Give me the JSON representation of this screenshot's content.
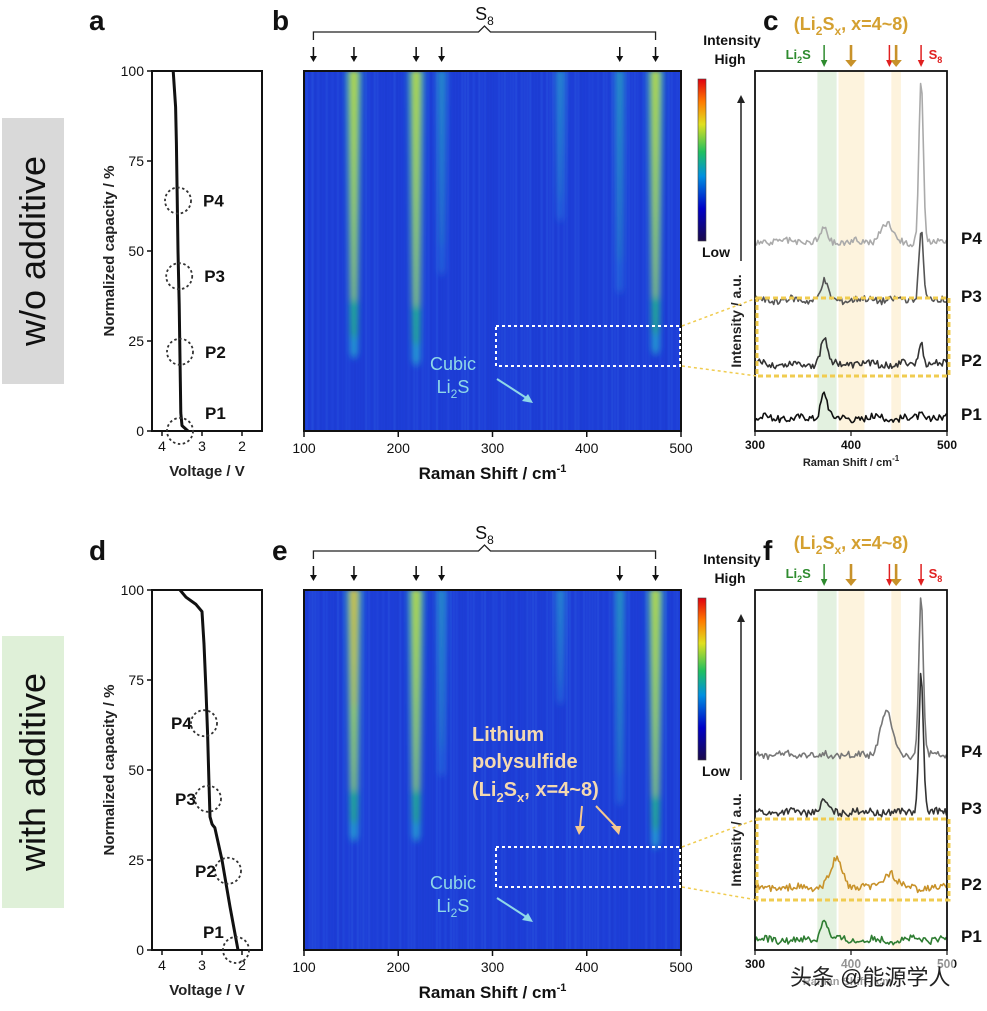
{
  "row_labels": {
    "top": "w/o additive",
    "bottom": "with additive"
  },
  "watermark": "头条 @能源学人",
  "panels": {
    "a": "a",
    "b": "b",
    "c": "c",
    "d": "d",
    "e": "e",
    "f": "f"
  },
  "common": {
    "s8": "S",
    "s8_sub": "8",
    "intensity": "Intensity",
    "high": "High",
    "low": "Low",
    "cubic": "Cubic",
    "li": "Li",
    "li2s_sub": "2",
    "li2s_s": "S",
    "raman_axis": "Raman Shift / cm",
    "raman_axis_sup": "-1",
    "raman_axis_small": "Raman Shift / cm",
    "voltage_axis": "Voltage / V",
    "capacity_axis": "Normalized capacity / %",
    "intensity_axis": "Intensity / a.u.",
    "polysulfide_top": "(Li",
    "polysulfide_mid": "S",
    "polysulfide_x": "x",
    "polysulfide_end": ", x=4~8)",
    "lithium": "Lithium",
    "polysulfide_word": "polysulfide",
    "li2s_marker": "Li",
    "s8_marker": "S"
  },
  "chart_data": [
    {
      "id": "a",
      "type": "line",
      "xlabel": "Voltage / V",
      "ylabel": "Normalized capacity / %",
      "xlim": [
        4.25,
        1.5
      ],
      "ylim": [
        0,
        100
      ],
      "xticks": [
        4,
        3,
        2
      ],
      "yticks": [
        0,
        25,
        50,
        75,
        100
      ],
      "series": [
        {
          "name": "discharge",
          "x": [
            3.72,
            3.66,
            3.64,
            3.62,
            3.6,
            3.57,
            3.55,
            3.53,
            3.5,
            3.35
          ],
          "y": [
            100,
            90,
            80,
            65,
            50,
            35,
            20,
            5,
            1.5,
            0
          ]
        }
      ],
      "points": [
        {
          "label": "P1",
          "x": 3.55,
          "y": 0
        },
        {
          "label": "P2",
          "x": 3.55,
          "y": 22
        },
        {
          "label": "P3",
          "x": 3.57,
          "y": 43
        },
        {
          "label": "P4",
          "x": 3.6,
          "y": 64
        }
      ]
    },
    {
      "id": "b",
      "type": "heatmap",
      "xlabel": "Raman Shift / cm-1",
      "xlim": [
        100,
        500
      ],
      "xticks": [
        100,
        200,
        300,
        400,
        500
      ],
      "colorbar": [
        "Intensity",
        "High",
        "Low"
      ],
      "s8_peaks": [
        110,
        153,
        219,
        246,
        435,
        473
      ],
      "bands": [
        {
          "x": 153,
          "strength": 1.0,
          "extent": 0.78
        },
        {
          "x": 219,
          "strength": 1.0,
          "extent": 0.8
        },
        {
          "x": 246,
          "strength": 0.35,
          "extent": 0.55
        },
        {
          "x": 435,
          "strength": 0.45,
          "extent": 0.6
        },
        {
          "x": 473,
          "strength": 1.0,
          "extent": 0.77
        },
        {
          "x": 372,
          "strength": 0.3,
          "extent": 0.4
        }
      ],
      "annotations": [
        "Cubic",
        "Li2S"
      ]
    },
    {
      "id": "c",
      "type": "line",
      "xlabel": "Raman Shift / cm-1",
      "ylabel": "Intensity / a.u.",
      "xlim": [
        300,
        500
      ],
      "xticks": [
        300,
        400,
        500
      ],
      "title": "(Li2Sx, x=4~8)",
      "series": [
        {
          "name": "P1",
          "color": "#111111",
          "peaks": [
            {
              "x": 372,
              "h": 26
            },
            {
              "x": 473,
              "h": 4
            }
          ]
        },
        {
          "name": "P2",
          "color": "#333333",
          "peaks": [
            {
              "x": 372,
              "h": 26
            },
            {
              "x": 473,
              "h": 22
            }
          ]
        },
        {
          "name": "P3",
          "color": "#555555",
          "peaks": [
            {
              "x": 372,
              "h": 18
            },
            {
              "x": 473,
              "h": 72
            }
          ]
        },
        {
          "name": "P4",
          "color": "#aaaaaa",
          "peaks": [
            {
              "x": 372,
              "h": 12
            },
            {
              "x": 437,
              "h": 18
            },
            {
              "x": 473,
              "h": 160
            }
          ]
        }
      ]
    },
    {
      "id": "d",
      "type": "line",
      "xlabel": "Voltage / V",
      "ylabel": "Normalized capacity / %",
      "xlim": [
        4.25,
        1.5
      ],
      "ylim": [
        0,
        100
      ],
      "xticks": [
        4,
        3,
        2
      ],
      "yticks": [
        0,
        25,
        50,
        75,
        100
      ],
      "series": [
        {
          "name": "discharge",
          "x": [
            3.55,
            3.4,
            3.15,
            3.0,
            2.95,
            2.9,
            2.86,
            2.83,
            2.8,
            2.75,
            2.72,
            2.68,
            2.5,
            2.3,
            2.15,
            2.1
          ],
          "y": [
            100,
            98,
            96,
            94,
            85,
            72,
            60,
            48,
            37,
            35,
            34.5,
            34,
            25,
            12,
            3,
            0
          ]
        }
      ],
      "points": [
        {
          "label": "P1",
          "x": 2.15,
          "y": 0
        },
        {
          "label": "P2",
          "x": 2.35,
          "y": 22
        },
        {
          "label": "P3",
          "x": 2.85,
          "y": 42
        },
        {
          "label": "P4",
          "x": 2.95,
          "y": 63
        }
      ]
    },
    {
      "id": "e",
      "type": "heatmap",
      "xlabel": "Raman Shift / cm-1",
      "xlim": [
        100,
        500
      ],
      "xticks": [
        100,
        200,
        300,
        400,
        500
      ],
      "colorbar": [
        "Intensity",
        "High",
        "Low"
      ],
      "s8_peaks": [
        110,
        153,
        219,
        246,
        435,
        473
      ],
      "bands": [
        {
          "x": 153,
          "strength": 1.1,
          "extent": 0.68
        },
        {
          "x": 219,
          "strength": 1.0,
          "extent": 0.68
        },
        {
          "x": 246,
          "strength": 0.35,
          "extent": 0.5
        },
        {
          "x": 435,
          "strength": 0.5,
          "extent": 0.58
        },
        {
          "x": 473,
          "strength": 1.0,
          "extent": 0.7
        },
        {
          "x": 372,
          "strength": 0.25,
          "extent": 0.3
        }
      ],
      "annotations": [
        "Lithium",
        "polysulfide",
        "(Li2Sx, x=4~8)",
        "Cubic",
        "Li2S"
      ]
    },
    {
      "id": "f",
      "type": "line",
      "xlabel": "Raman Shift / cm-1",
      "ylabel": "Intensity / a.u.",
      "xlim": [
        300,
        500
      ],
      "xticks": [
        300,
        400,
        500
      ],
      "title": "(Li2Sx, x=4~8)",
      "series": [
        {
          "name": "P1",
          "color": "#2e7d32",
          "peaks": [
            {
              "x": 372,
              "h": 22
            }
          ]
        },
        {
          "name": "P2",
          "color": "#c8922a",
          "peaks": [
            {
              "x": 385,
              "h": 28
            },
            {
              "x": 440,
              "h": 16
            }
          ]
        },
        {
          "name": "P3",
          "color": "#333333",
          "peaks": [
            {
              "x": 372,
              "h": 10
            },
            {
              "x": 473,
              "h": 140
            }
          ]
        },
        {
          "name": "P4",
          "color": "#777777",
          "peaks": [
            {
              "x": 437,
              "h": 42
            },
            {
              "x": 473,
              "h": 160
            }
          ]
        }
      ]
    }
  ]
}
